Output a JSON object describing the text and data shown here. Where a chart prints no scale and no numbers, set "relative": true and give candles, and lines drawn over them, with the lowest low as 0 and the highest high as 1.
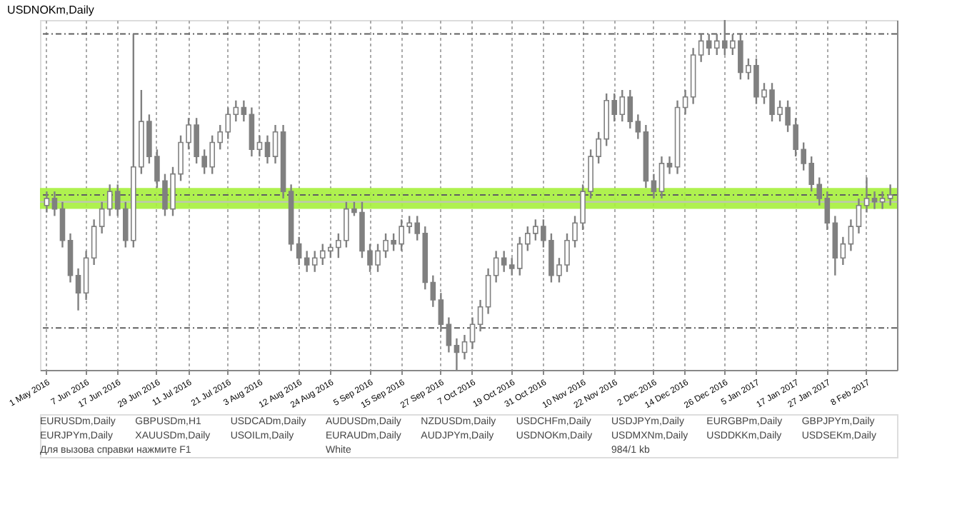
{
  "chart_data": {
    "type": "candlestick",
    "title": "USDNOKm,Daily",
    "relative": true,
    "categories": [
      "1 May 2016",
      null,
      null,
      null,
      null,
      "7 Jun 2016",
      null,
      null,
      null,
      "17 Jun 2016",
      null,
      null,
      null,
      null,
      "29 Jun 2016",
      null,
      null,
      null,
      "11 Jul 2016",
      null,
      null,
      null,
      null,
      "21 Jul 2016",
      null,
      null,
      null,
      "3 Aug 2016",
      null,
      null,
      null,
      null,
      "12 Aug 2016",
      null,
      null,
      null,
      "24 Aug 2016",
      null,
      null,
      null,
      null,
      "5 Sep 2016",
      null,
      null,
      null,
      "15 Sep 2016",
      null,
      null,
      null,
      null,
      "27 Sep 2016",
      null,
      null,
      null,
      "7 Oct 2016",
      null,
      null,
      null,
      null,
      "19 Oct 2016",
      null,
      null,
      null,
      "31 Oct 2016",
      null,
      null,
      null,
      null,
      "10 Nov 2016",
      null,
      null,
      null,
      "22 Nov 2016",
      null,
      null,
      null,
      null,
      "2 Dec 2016",
      null,
      null,
      null,
      "14 Dec 2016",
      null,
      null,
      null,
      null,
      "26 Dec 2016",
      null,
      null,
      null,
      "5 Jan 2017",
      null,
      null,
      null,
      null,
      "17 Jan 2017",
      null,
      null,
      null,
      "27 Jan 2017",
      null,
      null,
      null,
      null,
      "8 Feb 2017",
      null,
      null,
      null
    ],
    "color": "#808080",
    "ohlc": [
      [
        0.47,
        0.51,
        0.45,
        0.49
      ],
      [
        0.49,
        0.51,
        0.44,
        0.46
      ],
      [
        0.46,
        0.48,
        0.35,
        0.37
      ],
      [
        0.37,
        0.39,
        0.25,
        0.27
      ],
      [
        0.27,
        0.29,
        0.17,
        0.22
      ],
      [
        0.22,
        0.34,
        0.2,
        0.32
      ],
      [
        0.32,
        0.43,
        0.3,
        0.41
      ],
      [
        0.41,
        0.48,
        0.39,
        0.46
      ],
      [
        0.46,
        0.53,
        0.44,
        0.51
      ],
      [
        0.51,
        0.53,
        0.44,
        0.46
      ],
      [
        0.46,
        0.48,
        0.35,
        0.37
      ],
      [
        0.37,
        0.96,
        0.35,
        0.58
      ],
      [
        0.58,
        0.8,
        0.56,
        0.71
      ],
      [
        0.71,
        0.73,
        0.59,
        0.61
      ],
      [
        0.61,
        0.63,
        0.52,
        0.54
      ],
      [
        0.54,
        0.56,
        0.44,
        0.46
      ],
      [
        0.46,
        0.58,
        0.44,
        0.56
      ],
      [
        0.56,
        0.67,
        0.54,
        0.65
      ],
      [
        0.65,
        0.72,
        0.63,
        0.7
      ],
      [
        0.7,
        0.72,
        0.59,
        0.61
      ],
      [
        0.61,
        0.63,
        0.56,
        0.58
      ],
      [
        0.58,
        0.67,
        0.56,
        0.65
      ],
      [
        0.65,
        0.7,
        0.63,
        0.68
      ],
      [
        0.68,
        0.75,
        0.66,
        0.73
      ],
      [
        0.73,
        0.77,
        0.71,
        0.75
      ],
      [
        0.75,
        0.77,
        0.71,
        0.73
      ],
      [
        0.73,
        0.75,
        0.61,
        0.63
      ],
      [
        0.63,
        0.67,
        0.61,
        0.65
      ],
      [
        0.65,
        0.67,
        0.59,
        0.61
      ],
      [
        0.61,
        0.7,
        0.59,
        0.68
      ],
      [
        0.68,
        0.7,
        0.49,
        0.51
      ],
      [
        0.51,
        0.53,
        0.34,
        0.36
      ],
      [
        0.36,
        0.38,
        0.3,
        0.32
      ],
      [
        0.32,
        0.34,
        0.28,
        0.3
      ],
      [
        0.3,
        0.34,
        0.28,
        0.32
      ],
      [
        0.32,
        0.36,
        0.3,
        0.34
      ],
      [
        0.34,
        0.36,
        0.32,
        0.35
      ],
      [
        0.35,
        0.39,
        0.32,
        0.37
      ],
      [
        0.37,
        0.48,
        0.35,
        0.46
      ],
      [
        0.46,
        0.48,
        0.44,
        0.45
      ],
      [
        0.45,
        0.48,
        0.32,
        0.34
      ],
      [
        0.34,
        0.36,
        0.28,
        0.3
      ],
      [
        0.3,
        0.36,
        0.28,
        0.34
      ],
      [
        0.34,
        0.39,
        0.32,
        0.37
      ],
      [
        0.37,
        0.39,
        0.34,
        0.36
      ],
      [
        0.36,
        0.43,
        0.34,
        0.41
      ],
      [
        0.41,
        0.44,
        0.39,
        0.42
      ],
      [
        0.42,
        0.44,
        0.37,
        0.39
      ],
      [
        0.39,
        0.41,
        0.23,
        0.25
      ],
      [
        0.25,
        0.27,
        0.18,
        0.2
      ],
      [
        0.2,
        0.22,
        0.11,
        0.13
      ],
      [
        0.13,
        0.15,
        0.05,
        0.07
      ],
      [
        0.07,
        0.09,
        0.0,
        0.05
      ],
      [
        0.05,
        0.1,
        0.03,
        0.08
      ],
      [
        0.08,
        0.15,
        0.06,
        0.13
      ],
      [
        0.13,
        0.2,
        0.11,
        0.18
      ],
      [
        0.18,
        0.29,
        0.16,
        0.27
      ],
      [
        0.27,
        0.34,
        0.25,
        0.32
      ],
      [
        0.32,
        0.34,
        0.28,
        0.3
      ],
      [
        0.3,
        0.32,
        0.27,
        0.29
      ],
      [
        0.29,
        0.38,
        0.27,
        0.36
      ],
      [
        0.36,
        0.41,
        0.34,
        0.39
      ],
      [
        0.39,
        0.43,
        0.37,
        0.41
      ],
      [
        0.41,
        0.43,
        0.35,
        0.37
      ],
      [
        0.37,
        0.39,
        0.25,
        0.27
      ],
      [
        0.27,
        0.32,
        0.25,
        0.3
      ],
      [
        0.3,
        0.39,
        0.28,
        0.37
      ],
      [
        0.37,
        0.44,
        0.35,
        0.42
      ],
      [
        0.42,
        0.53,
        0.4,
        0.51
      ],
      [
        0.51,
        0.63,
        0.49,
        0.61
      ],
      [
        0.61,
        0.68,
        0.59,
        0.66
      ],
      [
        0.66,
        0.79,
        0.64,
        0.77
      ],
      [
        0.77,
        0.79,
        0.71,
        0.73
      ],
      [
        0.73,
        0.8,
        0.71,
        0.78
      ],
      [
        0.78,
        0.8,
        0.69,
        0.71
      ],
      [
        0.71,
        0.73,
        0.66,
        0.68
      ],
      [
        0.68,
        0.7,
        0.52,
        0.54
      ],
      [
        0.54,
        0.56,
        0.49,
        0.51
      ],
      [
        0.51,
        0.61,
        0.49,
        0.59
      ],
      [
        0.59,
        0.61,
        0.56,
        0.58
      ],
      [
        0.58,
        0.77,
        0.56,
        0.75
      ],
      [
        0.75,
        0.8,
        0.73,
        0.78
      ],
      [
        0.78,
        0.92,
        0.76,
        0.9
      ],
      [
        0.9,
        0.96,
        0.88,
        0.94
      ],
      [
        0.94,
        0.96,
        0.9,
        0.92
      ],
      [
        0.92,
        0.96,
        0.9,
        0.94
      ],
      [
        0.94,
        1.0,
        0.9,
        0.92
      ],
      [
        0.92,
        0.96,
        0.9,
        0.94
      ],
      [
        0.94,
        0.96,
        0.83,
        0.85
      ],
      [
        0.85,
        0.89,
        0.83,
        0.87
      ],
      [
        0.87,
        0.89,
        0.76,
        0.78
      ],
      [
        0.78,
        0.82,
        0.76,
        0.8
      ],
      [
        0.8,
        0.82,
        0.71,
        0.73
      ],
      [
        0.73,
        0.77,
        0.71,
        0.75
      ],
      [
        0.75,
        0.77,
        0.68,
        0.7
      ],
      [
        0.7,
        0.72,
        0.61,
        0.63
      ],
      [
        0.63,
        0.65,
        0.57,
        0.59
      ],
      [
        0.59,
        0.61,
        0.51,
        0.53
      ],
      [
        0.53,
        0.55,
        0.47,
        0.49
      ],
      [
        0.49,
        0.51,
        0.4,
        0.42
      ],
      [
        0.42,
        0.44,
        0.27,
        0.32
      ],
      [
        0.32,
        0.38,
        0.3,
        0.36
      ],
      [
        0.36,
        0.43,
        0.34,
        0.41
      ],
      [
        0.41,
        0.49,
        0.39,
        0.47
      ],
      [
        0.47,
        0.55,
        0.45,
        0.49
      ],
      [
        0.49,
        0.51,
        0.46,
        0.48
      ],
      [
        0.48,
        0.51,
        0.46,
        0.49
      ],
      [
        0.49,
        0.53,
        0.47,
        0.5
      ]
    ],
    "ref_lines": [
      {
        "axis": "y",
        "value": 0.96,
        "color": "#606060",
        "line_style": "dashed"
      },
      {
        "axis": "y",
        "value": 0.5,
        "color": "#606060",
        "line_style": "dashed"
      },
      {
        "axis": "y",
        "value": 0.12,
        "color": "#606060",
        "line_style": "dashed"
      },
      {
        "axis": "y",
        "value": 0.48,
        "color": "#c0c0c0",
        "line_style": "solid"
      }
    ],
    "bands": [
      {
        "axis": "y",
        "from": 0.46,
        "to": 0.52,
        "color": "#a6f03c"
      }
    ],
    "grid": "x",
    "annotations": [
      "EURUSDm,Daily",
      "GBPUSDm,H1",
      "USDCADm,Daily",
      "AUDUSDm,Daily",
      "NZDUSDm,Daily",
      "USDCHFm,Daily",
      "USDJPYm,Daily",
      "EURGBPm,Daily",
      "GBPJPYm,Daily",
      "EURJPYm,Daily",
      "XAUUSDm,Daily",
      "USOILm,Daily",
      "EURAUDm,Daily",
      "AUDJPYm,Daily",
      "USDNOKm,Daily",
      "USDMXNm,Daily",
      "USDDKKm,Daily",
      "USDSEKm,Daily",
      "Для вызова справки нажмите F1",
      "White",
      "984/1 kb"
    ]
  }
}
